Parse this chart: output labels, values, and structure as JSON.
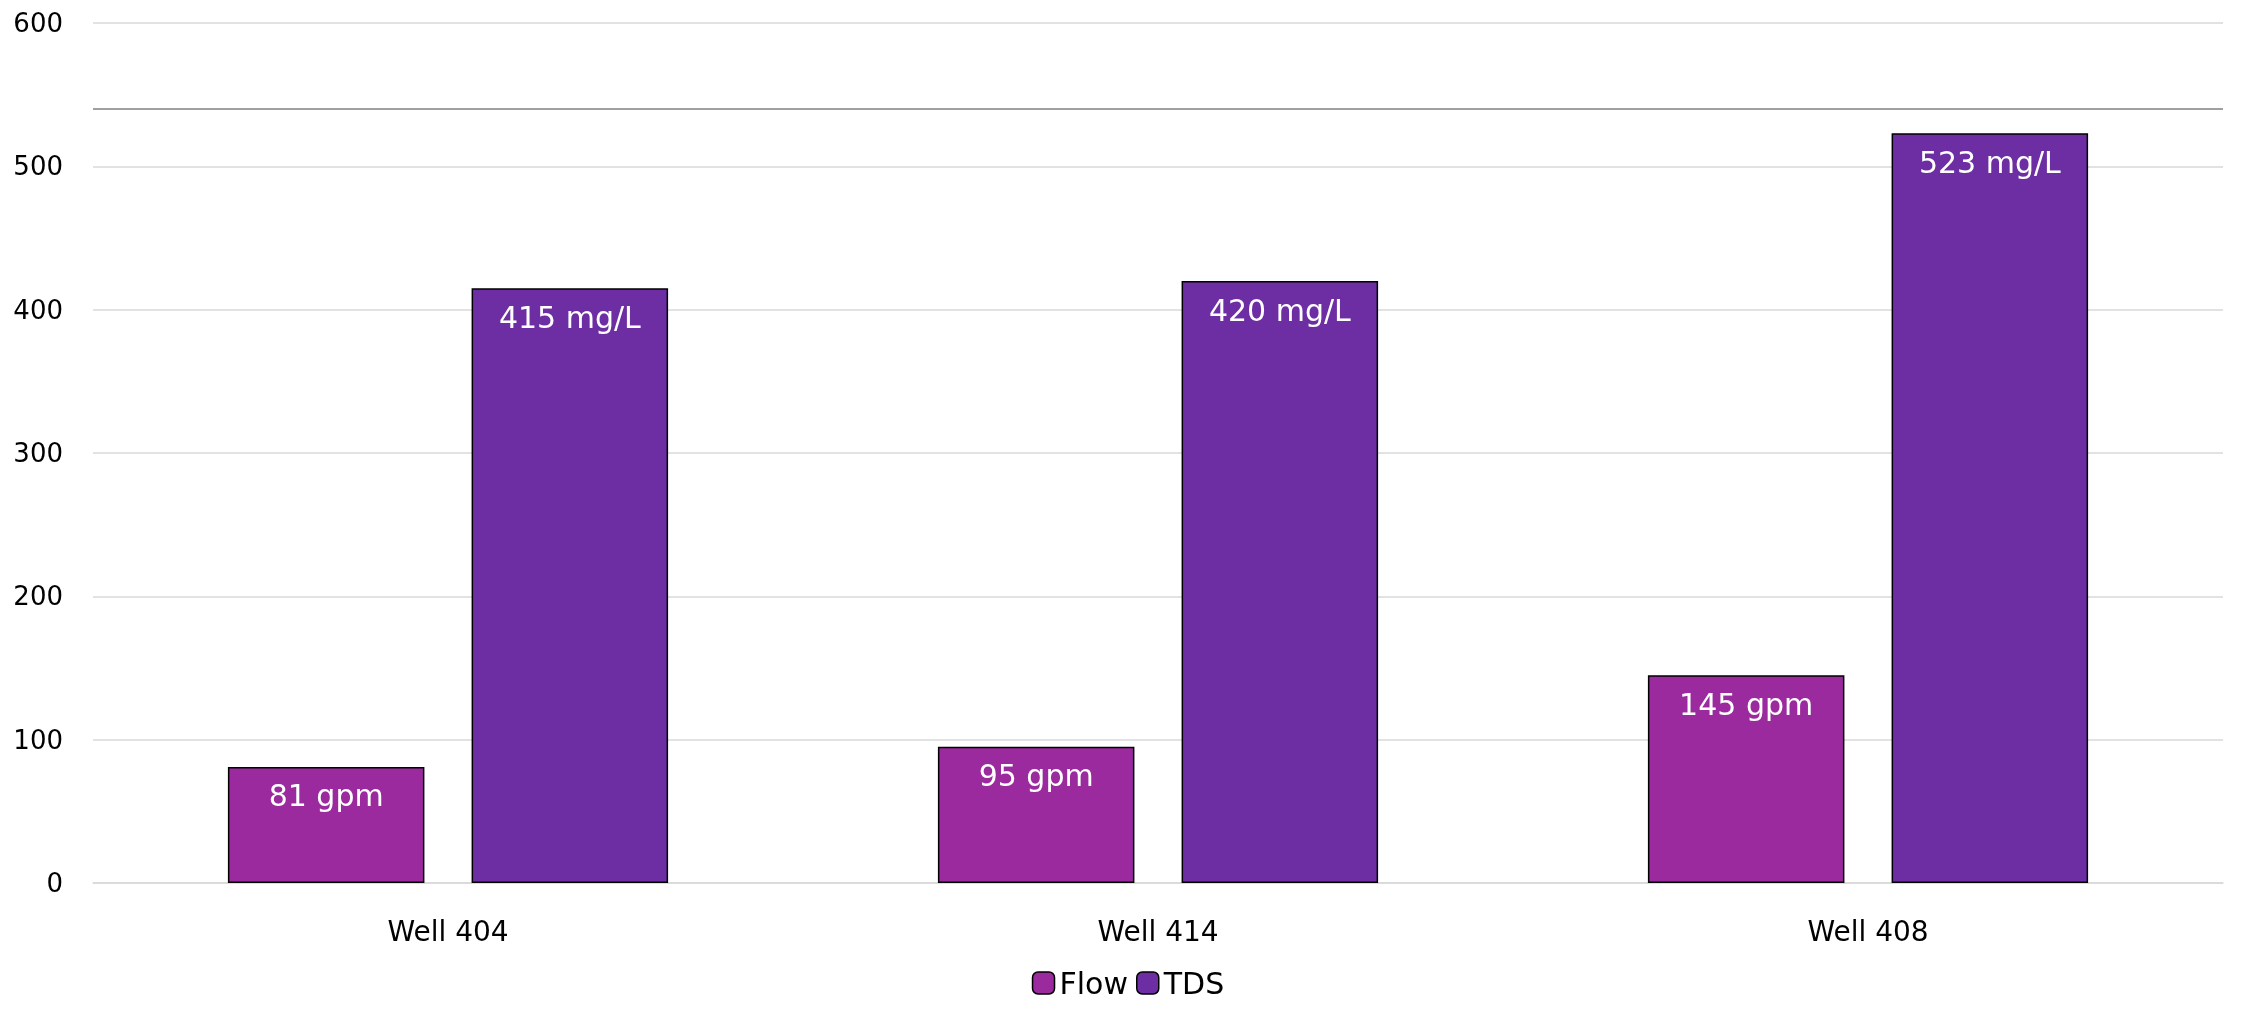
{
  "chart_data": {
    "type": "bar",
    "categories": [
      "Well 404",
      "Well 414",
      "Well 408"
    ],
    "series": [
      {
        "name": "Flow",
        "color": "#9a2a9e",
        "values": [
          81,
          95,
          145
        ],
        "value_labels": [
          "81 gpm",
          "95 gpm",
          "145 gpm"
        ]
      },
      {
        "name": "TDS",
        "color": "#6d2ea3",
        "values": [
          415,
          420,
          523
        ],
        "value_labels": [
          "415 mg/L",
          "420 mg/L",
          "523 mg/L"
        ]
      }
    ],
    "ylim": [
      0,
      600
    ],
    "yticks": [
      0,
      100,
      200,
      300,
      400,
      500,
      600
    ],
    "grid": "y",
    "legend": "bottom",
    "ref_lines": [
      {
        "axis": "y",
        "value": 540,
        "color": "#808080"
      }
    ]
  }
}
